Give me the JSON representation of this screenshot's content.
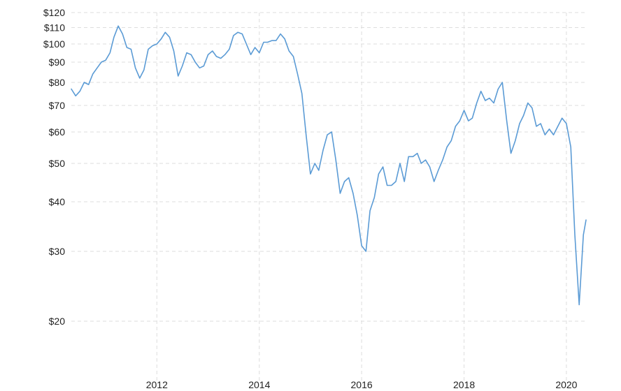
{
  "chart_data": {
    "type": "line",
    "title": "",
    "xlabel": "",
    "ylabel": "",
    "y_scale": "log",
    "grid": true,
    "legend": "none",
    "line_color": "#5b9bd5",
    "grid_color": "#dddddd",
    "ylim": [
      14,
      120
    ],
    "xlim": [
      "2010-05-01",
      "2020-05-20"
    ],
    "y_ticks": [
      {
        "value": 20,
        "label": "$20"
      },
      {
        "value": 30,
        "label": "$30"
      },
      {
        "value": 40,
        "label": "$40"
      },
      {
        "value": 50,
        "label": "$50"
      },
      {
        "value": 60,
        "label": "$60"
      },
      {
        "value": 70,
        "label": "$70"
      },
      {
        "value": 80,
        "label": "$80"
      },
      {
        "value": 90,
        "label": "$90"
      },
      {
        "value": 100,
        "label": "$100"
      },
      {
        "value": 110,
        "label": "$110"
      },
      {
        "value": 120,
        "label": "$120"
      }
    ],
    "x_ticks": [
      {
        "value": "2012-01-01",
        "label": "2012"
      },
      {
        "value": "2014-01-01",
        "label": "2014"
      },
      {
        "value": "2016-01-01",
        "label": "2016"
      },
      {
        "value": "2018-01-01",
        "label": "2018"
      },
      {
        "value": "2020-01-01",
        "label": "2020"
      }
    ],
    "series": [
      {
        "points": [
          [
            "2010-05-01",
            77
          ],
          [
            "2010-06-01",
            74
          ],
          [
            "2010-07-01",
            76
          ],
          [
            "2010-08-01",
            80
          ],
          [
            "2010-09-01",
            79
          ],
          [
            "2010-10-01",
            84
          ],
          [
            "2010-11-01",
            87
          ],
          [
            "2010-12-01",
            90
          ],
          [
            "2011-01-01",
            91
          ],
          [
            "2011-02-01",
            95
          ],
          [
            "2011-03-01",
            104
          ],
          [
            "2011-04-01",
            111
          ],
          [
            "2011-05-01",
            106
          ],
          [
            "2011-06-01",
            98
          ],
          [
            "2011-07-01",
            97
          ],
          [
            "2011-08-01",
            87
          ],
          [
            "2011-09-01",
            82
          ],
          [
            "2011-10-01",
            86
          ],
          [
            "2011-11-01",
            97
          ],
          [
            "2011-12-01",
            99
          ],
          [
            "2012-01-01",
            100
          ],
          [
            "2012-02-01",
            103
          ],
          [
            "2012-03-01",
            107
          ],
          [
            "2012-04-01",
            104
          ],
          [
            "2012-05-01",
            96
          ],
          [
            "2012-06-01",
            83
          ],
          [
            "2012-07-01",
            88
          ],
          [
            "2012-08-01",
            95
          ],
          [
            "2012-09-01",
            94
          ],
          [
            "2012-10-01",
            90
          ],
          [
            "2012-11-01",
            87
          ],
          [
            "2012-12-01",
            88
          ],
          [
            "2013-01-01",
            94
          ],
          [
            "2013-02-01",
            96
          ],
          [
            "2013-03-01",
            93
          ],
          [
            "2013-04-01",
            92
          ],
          [
            "2013-05-01",
            94
          ],
          [
            "2013-06-01",
            97
          ],
          [
            "2013-07-01",
            105
          ],
          [
            "2013-08-01",
            107
          ],
          [
            "2013-09-01",
            106
          ],
          [
            "2013-10-01",
            100
          ],
          [
            "2013-11-01",
            94
          ],
          [
            "2013-12-01",
            98
          ],
          [
            "2014-01-01",
            95
          ],
          [
            "2014-02-01",
            101
          ],
          [
            "2014-03-01",
            101
          ],
          [
            "2014-04-01",
            102
          ],
          [
            "2014-05-01",
            102
          ],
          [
            "2014-06-01",
            106
          ],
          [
            "2014-07-01",
            103
          ],
          [
            "2014-08-01",
            96
          ],
          [
            "2014-09-01",
            93
          ],
          [
            "2014-10-01",
            84
          ],
          [
            "2014-11-01",
            75
          ],
          [
            "2014-12-01",
            59
          ],
          [
            "2015-01-01",
            47
          ],
          [
            "2015-02-01",
            50
          ],
          [
            "2015-03-01",
            48
          ],
          [
            "2015-04-01",
            54
          ],
          [
            "2015-05-01",
            59
          ],
          [
            "2015-06-01",
            60
          ],
          [
            "2015-07-01",
            51
          ],
          [
            "2015-08-01",
            42
          ],
          [
            "2015-09-01",
            45
          ],
          [
            "2015-10-01",
            46
          ],
          [
            "2015-11-01",
            42
          ],
          [
            "2015-12-01",
            37
          ],
          [
            "2016-01-01",
            31
          ],
          [
            "2016-02-01",
            30
          ],
          [
            "2016-03-01",
            38
          ],
          [
            "2016-04-01",
            41
          ],
          [
            "2016-05-01",
            47
          ],
          [
            "2016-06-01",
            49
          ],
          [
            "2016-07-01",
            44
          ],
          [
            "2016-08-01",
            44
          ],
          [
            "2016-09-01",
            45
          ],
          [
            "2016-10-01",
            50
          ],
          [
            "2016-11-01",
            45
          ],
          [
            "2016-12-01",
            52
          ],
          [
            "2017-01-01",
            52
          ],
          [
            "2017-02-01",
            53
          ],
          [
            "2017-03-01",
            50
          ],
          [
            "2017-04-01",
            51
          ],
          [
            "2017-05-01",
            49
          ],
          [
            "2017-06-01",
            45
          ],
          [
            "2017-07-01",
            48
          ],
          [
            "2017-08-01",
            51
          ],
          [
            "2017-09-01",
            55
          ],
          [
            "2017-10-01",
            57
          ],
          [
            "2017-11-01",
            62
          ],
          [
            "2017-12-01",
            64
          ],
          [
            "2018-01-01",
            68
          ],
          [
            "2018-02-01",
            64
          ],
          [
            "2018-03-01",
            65
          ],
          [
            "2018-04-01",
            71
          ],
          [
            "2018-05-01",
            76
          ],
          [
            "2018-06-01",
            72
          ],
          [
            "2018-07-01",
            73
          ],
          [
            "2018-08-01",
            71
          ],
          [
            "2018-09-01",
            77
          ],
          [
            "2018-10-01",
            80
          ],
          [
            "2018-11-01",
            64
          ],
          [
            "2018-12-01",
            53
          ],
          [
            "2019-01-01",
            57
          ],
          [
            "2019-02-01",
            63
          ],
          [
            "2019-03-01",
            66
          ],
          [
            "2019-04-01",
            71
          ],
          [
            "2019-05-01",
            69
          ],
          [
            "2019-06-01",
            62
          ],
          [
            "2019-07-01",
            63
          ],
          [
            "2019-08-01",
            59
          ],
          [
            "2019-09-01",
            61
          ],
          [
            "2019-10-01",
            59
          ],
          [
            "2019-11-01",
            62
          ],
          [
            "2019-12-01",
            65
          ],
          [
            "2020-01-01",
            63
          ],
          [
            "2020-02-01",
            55
          ],
          [
            "2020-03-01",
            33
          ],
          [
            "2020-04-01",
            22
          ],
          [
            "2020-05-01",
            33
          ],
          [
            "2020-05-20",
            36
          ]
        ]
      }
    ]
  }
}
